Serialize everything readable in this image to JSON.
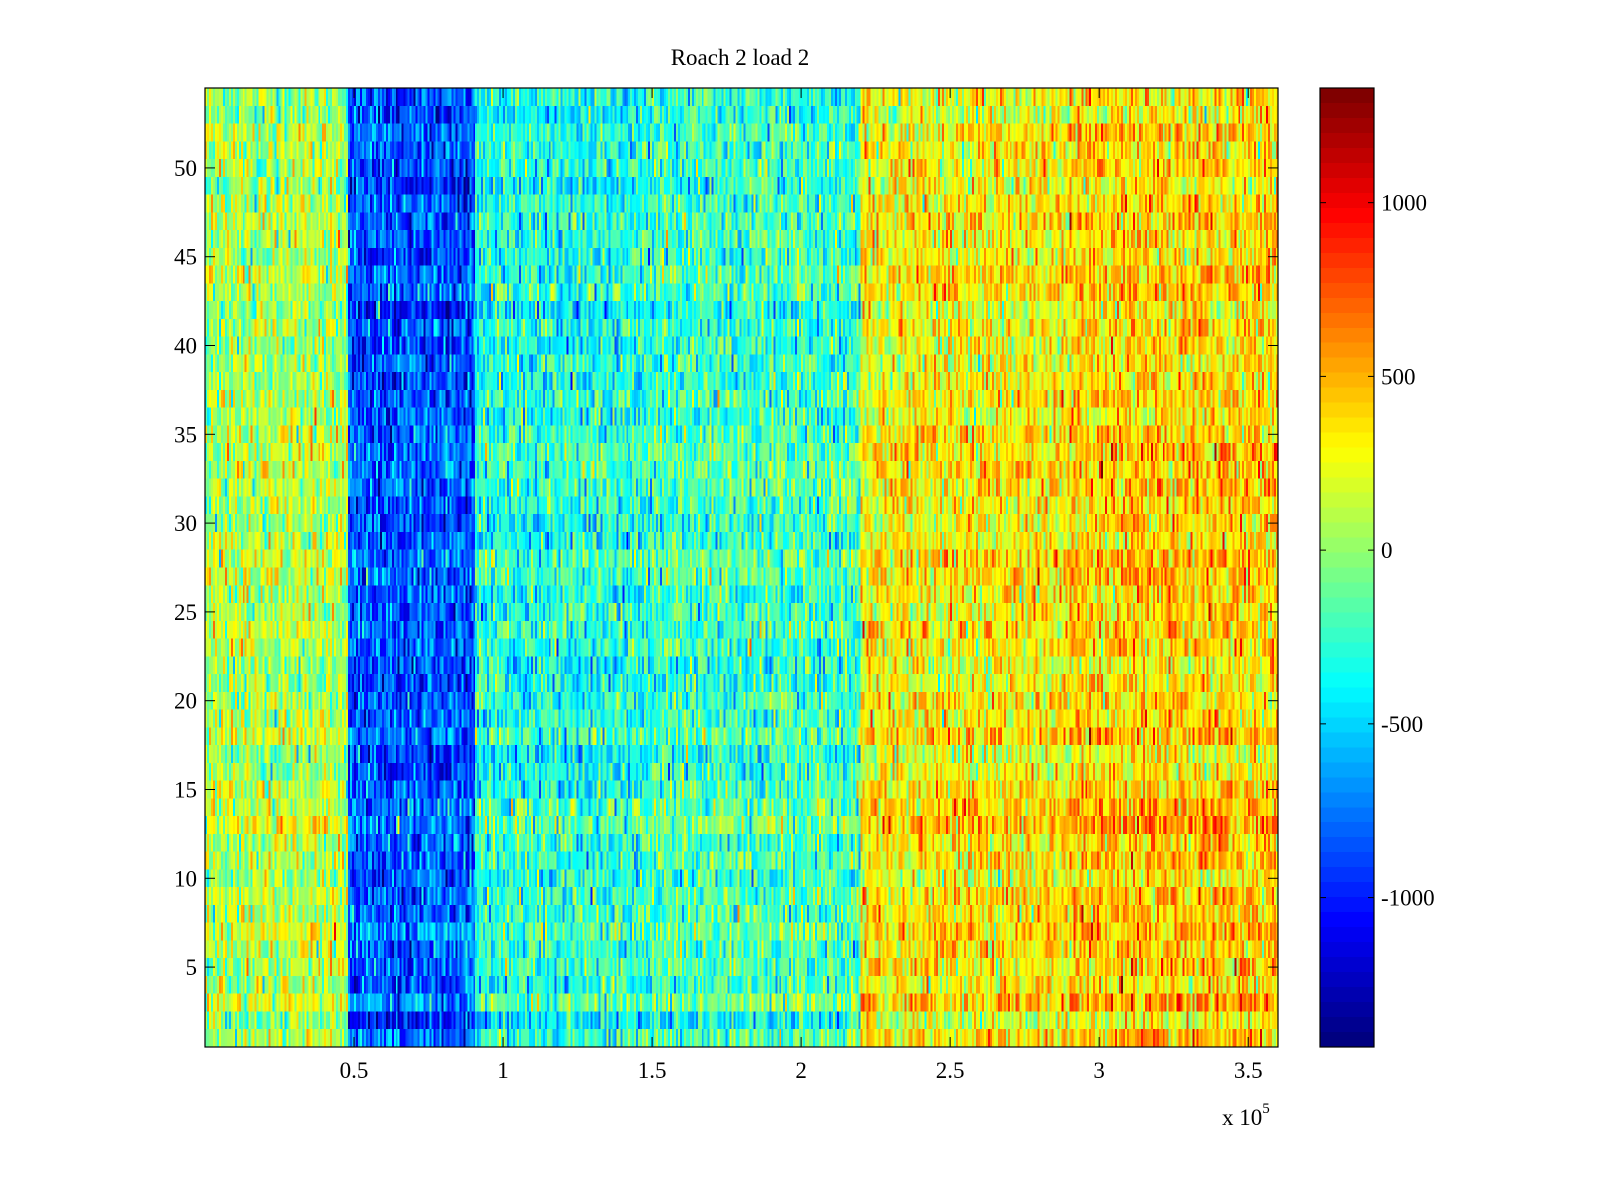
{
  "chart_data": {
    "type": "heatmap",
    "title": "Roach 2 load 2",
    "xlabel": "",
    "ylabel": "",
    "x_exponent_label": "x 10",
    "x_exponent": "5",
    "xlim": [
      0,
      360000
    ],
    "ylim": [
      0.5,
      54.5
    ],
    "rows": 54,
    "columns": 540,
    "xticks": [
      50000,
      100000,
      150000,
      200000,
      250000,
      300000,
      350000
    ],
    "xtick_labels": [
      "0.5",
      "1",
      "1.5",
      "2",
      "2.5",
      "3",
      "3.5"
    ],
    "yticks": [
      5,
      10,
      15,
      20,
      25,
      30,
      35,
      40,
      45,
      50
    ],
    "ytick_labels": [
      "5",
      "10",
      "15",
      "20",
      "25",
      "30",
      "35",
      "40",
      "45",
      "50"
    ],
    "colormap": "jet",
    "clim": [
      -1430,
      1330
    ],
    "colorbar_ticks": [
      -1000,
      -500,
      0,
      500,
      1000
    ],
    "colorbar_tick_labels": [
      "-1000",
      "-500",
      "0",
      "500",
      "1000"
    ],
    "column_profile": {
      "note_x": "mean value by x-range (x in data units)",
      "segments": [
        {
          "x0": 0,
          "x1": 48000,
          "mean": 50
        },
        {
          "x0": 48000,
          "x1": 91000,
          "mean": -880
        },
        {
          "x0": 91000,
          "x1": 150000,
          "mean": -330
        },
        {
          "x0": 150000,
          "x1": 220000,
          "mean": -250
        },
        {
          "x0": 220000,
          "x1": 290000,
          "mean": 280
        },
        {
          "x0": 290000,
          "x1": 360000,
          "mean": 380
        }
      ],
      "noise_std": 230,
      "row_noise_std": 70,
      "seed": 12345
    }
  }
}
